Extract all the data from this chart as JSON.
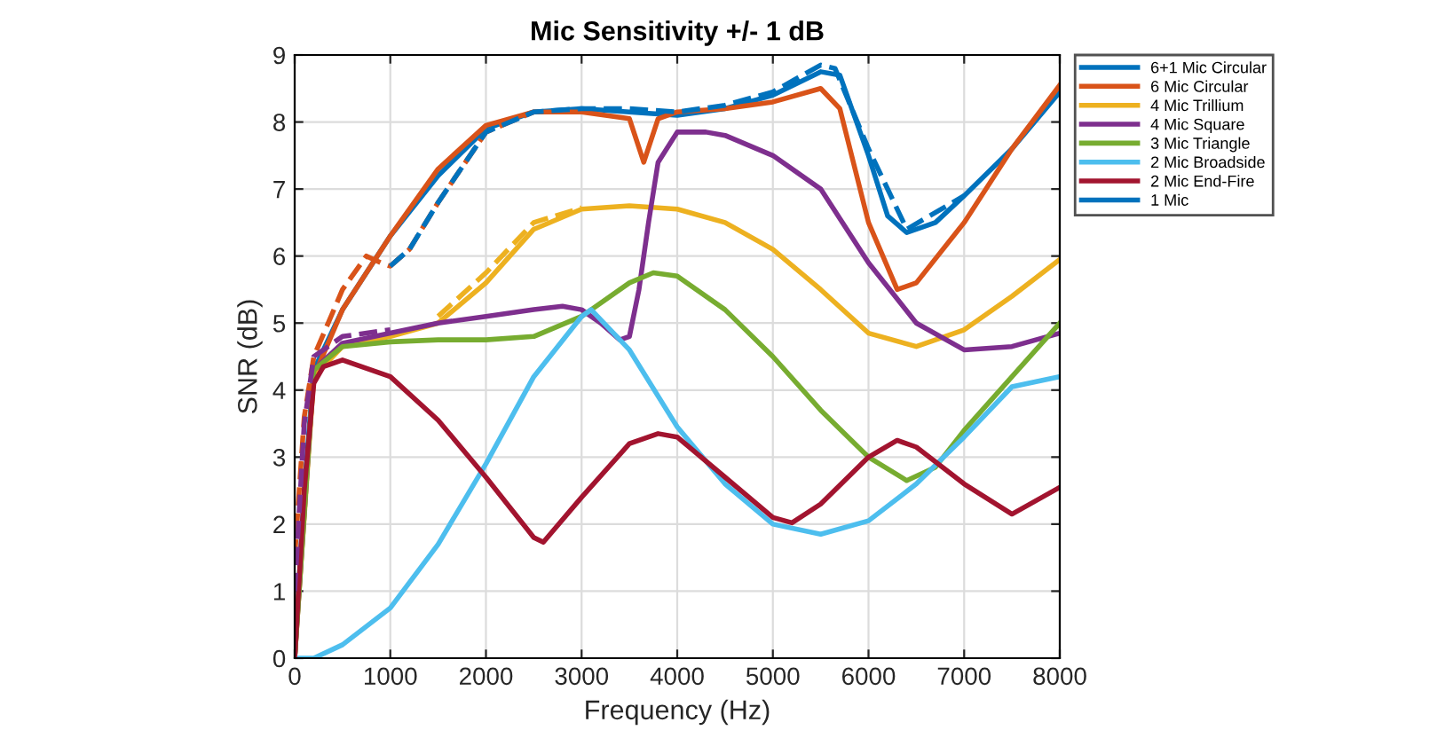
{
  "chart_data": {
    "type": "line",
    "title": "Mic Sensitivity +/- 1 dB",
    "xlabel": "Frequency (Hz)",
    "ylabel": "SNR (dB)",
    "xlim": [
      0,
      8000
    ],
    "xticks": [
      0,
      1000,
      2000,
      3000,
      4000,
      5000,
      6000,
      7000,
      8000
    ],
    "ylim": [
      0,
      9
    ],
    "yticks": [
      0,
      1,
      2,
      3,
      4,
      5,
      6,
      7,
      8,
      9
    ],
    "grid": true,
    "legend": "top right",
    "marker": "none",
    "series": [
      {
        "name": "6+1 Mic Circular",
        "color": "#0072bd",
        "x": [
          0,
          100,
          200,
          500,
          1000,
          1500,
          2000,
          2500,
          3000,
          3500,
          4000,
          4500,
          5000,
          5500,
          5700,
          6000,
          6200,
          6400,
          6700,
          7000,
          7500,
          8000
        ],
        "values": [
          0,
          2.5,
          4.3,
          5.2,
          6.3,
          7.2,
          7.9,
          8.15,
          8.2,
          8.15,
          8.1,
          8.2,
          8.4,
          8.75,
          8.7,
          7.5,
          6.6,
          6.35,
          6.5,
          6.9,
          7.6,
          8.45
        ]
      },
      {
        "name": "6 Mic Circular",
        "color": "#d95319",
        "x": [
          0,
          100,
          200,
          500,
          1000,
          1500,
          2000,
          2500,
          3000,
          3500,
          3650,
          3800,
          4000,
          4500,
          5000,
          5500,
          5700,
          6000,
          6300,
          6500,
          7000,
          7500,
          8000
        ],
        "values": [
          0,
          2.3,
          4.2,
          5.2,
          6.3,
          7.3,
          7.95,
          8.15,
          8.15,
          8.05,
          7.4,
          8.05,
          8.15,
          8.2,
          8.3,
          8.5,
          8.2,
          6.5,
          5.5,
          5.6,
          6.5,
          7.6,
          8.55
        ]
      },
      {
        "name": "4 Mic Trillium",
        "color": "#edb120",
        "x": [
          0,
          200,
          500,
          1000,
          1500,
          2000,
          2500,
          3000,
          3500,
          4000,
          4500,
          5000,
          5500,
          6000,
          6500,
          7000,
          7500,
          8000
        ],
        "values": [
          0,
          4.2,
          4.65,
          4.8,
          5.0,
          5.6,
          6.4,
          6.7,
          6.75,
          6.7,
          6.5,
          6.1,
          5.5,
          4.85,
          4.65,
          4.9,
          5.4,
          5.95
        ]
      },
      {
        "name": "4 Mic Square",
        "color": "#7e2f8e",
        "x": [
          0,
          200,
          500,
          1000,
          1500,
          2000,
          2500,
          2800,
          3000,
          3200,
          3400,
          3500,
          3600,
          3700,
          3800,
          4000,
          4300,
          4500,
          5000,
          5500,
          6000,
          6500,
          7000,
          7500,
          8000
        ],
        "values": [
          0,
          4.3,
          4.7,
          4.85,
          5.0,
          5.1,
          5.2,
          5.25,
          5.2,
          5.0,
          4.75,
          4.8,
          5.5,
          6.5,
          7.4,
          7.85,
          7.85,
          7.8,
          7.5,
          7.0,
          5.9,
          5.0,
          4.6,
          4.65,
          4.85
        ]
      },
      {
        "name": "3 Mic Triangle",
        "color": "#77ac30",
        "x": [
          0,
          200,
          500,
          1000,
          1500,
          2000,
          2500,
          3000,
          3500,
          3750,
          4000,
          4500,
          5000,
          5500,
          6000,
          6400,
          6700,
          7000,
          7500,
          8000
        ],
        "values": [
          0,
          4.3,
          4.65,
          4.72,
          4.75,
          4.75,
          4.8,
          5.1,
          5.6,
          5.75,
          5.7,
          5.2,
          4.5,
          3.7,
          3.0,
          2.65,
          2.85,
          3.4,
          4.2,
          5.0
        ]
      },
      {
        "name": "2 Mic Broadside",
        "color": "#4dbeee",
        "x": [
          0,
          200,
          500,
          1000,
          1500,
          2000,
          2500,
          3000,
          3100,
          3500,
          4000,
          4500,
          5000,
          5500,
          6000,
          6500,
          7000,
          7500,
          8000
        ],
        "values": [
          0,
          0.0,
          0.2,
          0.75,
          1.7,
          2.9,
          4.2,
          5.1,
          5.2,
          4.6,
          3.45,
          2.6,
          2.0,
          1.85,
          2.05,
          2.6,
          3.3,
          4.05,
          4.2
        ]
      },
      {
        "name": "2 Mic End-Fire",
        "color": "#a2142f",
        "x": [
          0,
          100,
          200,
          300,
          500,
          1000,
          1500,
          2000,
          2500,
          2600,
          3000,
          3500,
          3800,
          4000,
          4500,
          5000,
          5200,
          5500,
          6000,
          6300,
          6500,
          7000,
          7500,
          8000
        ],
        "values": [
          0,
          2.5,
          4.1,
          4.35,
          4.45,
          4.2,
          3.55,
          2.7,
          1.8,
          1.73,
          2.4,
          3.2,
          3.35,
          3.3,
          2.7,
          2.1,
          2.02,
          2.3,
          3.0,
          3.25,
          3.15,
          2.6,
          2.15,
          2.55
        ]
      },
      {
        "name": "1 Mic",
        "color": "#0072bd"
      },
      {
        "color": "#d95319",
        "line_style": "dashed",
        "x": [
          0,
          100,
          200,
          500,
          750,
          900,
          1000,
          1200,
          1500,
          2000,
          2500
        ],
        "values": [
          1.5,
          3.6,
          4.5,
          5.5,
          6.0,
          5.9,
          5.85,
          6.1,
          6.8,
          7.85,
          8.15
        ]
      },
      {
        "color": "#0072bd",
        "line_style": "dashed",
        "x": [
          1000,
          1200,
          1500,
          2000,
          2500,
          3000,
          3500,
          4000,
          4500,
          5000,
          5500,
          5650,
          6000,
          6400,
          7000
        ],
        "values": [
          5.85,
          6.1,
          6.8,
          7.85,
          8.15,
          8.2,
          8.2,
          8.15,
          8.25,
          8.45,
          8.85,
          8.8,
          7.6,
          6.4,
          6.9
        ]
      },
      {
        "color": "#edb120",
        "line_style": "dashed",
        "x": [
          1500,
          2000,
          2500,
          3000
        ],
        "values": [
          5.1,
          5.75,
          6.5,
          6.72
        ]
      },
      {
        "color": "#7e2f8e",
        "line_style": "dashed",
        "x": [
          0,
          100,
          200,
          500,
          1000
        ],
        "values": [
          1.0,
          3.5,
          4.5,
          4.8,
          4.9
        ]
      }
    ]
  }
}
